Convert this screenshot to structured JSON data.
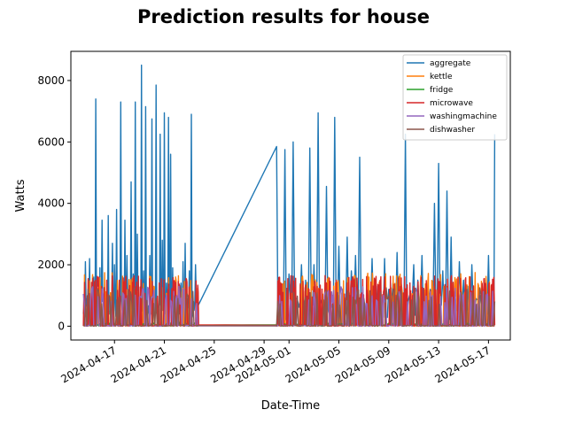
{
  "chart_data": {
    "type": "line",
    "title": "Prediction results for house",
    "xlabel": "Date-Time",
    "ylabel": "Watts",
    "xlim": [
      "2024-04-13T12:00",
      "2024-05-18T18:00"
    ],
    "ylim": [
      -450,
      8950
    ],
    "x_ticks": [
      "2024-04-17",
      "2024-04-21",
      "2024-04-25",
      "2024-04-29",
      "2024-05-01",
      "2024-05-05",
      "2024-05-09",
      "2024-05-13",
      "2024-05-17"
    ],
    "y_ticks": [
      0,
      2000,
      4000,
      6000,
      8000
    ],
    "legend_position": "top-right",
    "grid": false,
    "series": [
      {
        "name": "aggregate",
        "color": "#1f77b4",
        "x": [
          "2024-04-14T12:00",
          "2024-04-14T16:00",
          "2024-04-14T20:00",
          "2024-04-15T00:00",
          "2024-04-15T04:00",
          "2024-04-15T08:00",
          "2024-04-15T12:00",
          "2024-04-15T16:00",
          "2024-04-15T20:00",
          "2024-04-16T00:00",
          "2024-04-16T04:00",
          "2024-04-16T08:00",
          "2024-04-16T12:00",
          "2024-04-16T16:00",
          "2024-04-16T20:00",
          "2024-04-17T00:00",
          "2024-04-17T04:00",
          "2024-04-17T08:00",
          "2024-04-17T12:00",
          "2024-04-17T16:00",
          "2024-04-17T20:00",
          "2024-04-18T00:00",
          "2024-04-18T04:00",
          "2024-04-18T08:00",
          "2024-04-18T12:00",
          "2024-04-18T16:00",
          "2024-04-18T20:00",
          "2024-04-19T00:00",
          "2024-04-19T04:00",
          "2024-04-19T08:00",
          "2024-04-19T12:00",
          "2024-04-19T16:00",
          "2024-04-19T20:00",
          "2024-04-20T00:00",
          "2024-04-20T04:00",
          "2024-04-20T08:00",
          "2024-04-20T12:00",
          "2024-04-20T16:00",
          "2024-04-20T20:00",
          "2024-04-21T00:00",
          "2024-04-21T04:00",
          "2024-04-21T08:00",
          "2024-04-21T12:00",
          "2024-04-21T16:00",
          "2024-04-21T20:00",
          "2024-04-22T00:00",
          "2024-04-22T04:00",
          "2024-04-22T08:00",
          "2024-04-22T12:00",
          "2024-04-22T16:00",
          "2024-04-22T20:00",
          "2024-04-23T00:00",
          "2024-04-23T04:00",
          "2024-04-23T08:00",
          "2024-04-23T12:00",
          "2024-04-23T18:00",
          "2024-04-30T00:00",
          "2024-04-30T08:00",
          "2024-04-30T16:00",
          "2024-05-01T00:00",
          "2024-05-01T08:00",
          "2024-05-01T16:00",
          "2024-05-02T00:00",
          "2024-05-02T08:00",
          "2024-05-02T16:00",
          "2024-05-03T00:00",
          "2024-05-03T08:00",
          "2024-05-03T16:00",
          "2024-05-04T00:00",
          "2024-05-04T08:00",
          "2024-05-04T16:00",
          "2024-05-05T00:00",
          "2024-05-05T08:00",
          "2024-05-05T16:00",
          "2024-05-06T00:00",
          "2024-05-06T08:00",
          "2024-05-06T16:00",
          "2024-05-07T00:00",
          "2024-05-07T08:00",
          "2024-05-07T16:00",
          "2024-05-08T00:00",
          "2024-05-08T08:00",
          "2024-05-08T16:00",
          "2024-05-09T00:00",
          "2024-05-09T08:00",
          "2024-05-09T16:00",
          "2024-05-10T00:00",
          "2024-05-10T08:00",
          "2024-05-10T16:00",
          "2024-05-11T00:00",
          "2024-05-11T08:00",
          "2024-05-11T16:00",
          "2024-05-12T00:00",
          "2024-05-12T08:00",
          "2024-05-12T16:00",
          "2024-05-13T00:00",
          "2024-05-13T08:00",
          "2024-05-13T16:00",
          "2024-05-14T00:00",
          "2024-05-14T08:00",
          "2024-05-14T16:00",
          "2024-05-15T00:00",
          "2024-05-15T08:00",
          "2024-05-15T16:00",
          "2024-05-16T00:00",
          "2024-05-16T08:00",
          "2024-05-16T16:00",
          "2024-05-17T00:00",
          "2024-05-17T08:00",
          "2024-05-17T12:00"
        ],
        "values": [
          400,
          2100,
          600,
          2200,
          500,
          1600,
          7400,
          700,
          1900,
          3450,
          600,
          1000,
          3600,
          500,
          2700,
          2000,
          3800,
          600,
          7300,
          1500,
          3450,
          2300,
          600,
          4700,
          1700,
          7300,
          3000,
          600,
          8500,
          1800,
          7150,
          500,
          2300,
          6750,
          1000,
          7850,
          600,
          6250,
          2800,
          6950,
          1400,
          6800,
          5600,
          1900,
          700,
          480,
          500,
          1400,
          2100,
          2700,
          900,
          1800,
          6900,
          800,
          2000,
          700,
          5850,
          900,
          5750,
          1700,
          6000,
          900,
          2000,
          1500,
          5800,
          2000,
          6950,
          700,
          4550,
          800,
          6800,
          2600,
          1200,
          2900,
          1800,
          2300,
          5500,
          900,
          1600,
          2200,
          1300,
          1500,
          2200,
          1200,
          1400,
          2400,
          800,
          6250,
          1000,
          2000,
          1500,
          2300,
          900,
          1200,
          4000,
          5300,
          1800,
          4400,
          2900,
          900,
          2100,
          1500,
          1300,
          2000,
          900,
          1000,
          1500,
          2300,
          600,
          6250
        ],
        "y_max": 8500
      },
      {
        "name": "kettle",
        "color": "#ff7f0e",
        "values_range": [
          0,
          2000
        ],
        "y_max": 2000
      },
      {
        "name": "fridge",
        "color": "#2ca02c",
        "values_range": [
          0,
          150
        ],
        "y_max": 150
      },
      {
        "name": "microwave",
        "color": "#d62728",
        "values_range": [
          0,
          1650
        ],
        "y_max": 1650
      },
      {
        "name": "washingmachine",
        "color": "#9467bd",
        "values_range": [
          0,
          1350
        ],
        "y_max": 1350
      },
      {
        "name": "dishwasher",
        "color": "#8c564b",
        "values_range": [
          0,
          1300
        ],
        "y_max": 1300
      }
    ]
  }
}
